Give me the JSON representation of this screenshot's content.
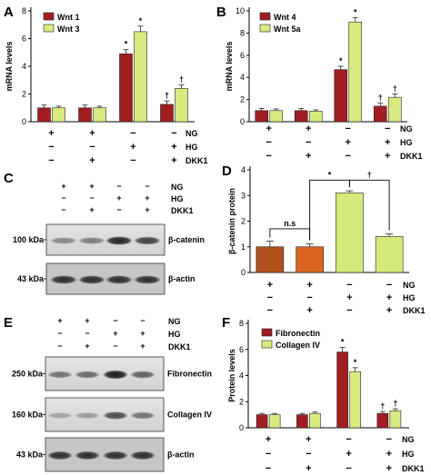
{
  "colors": {
    "red": "#a11d21",
    "lightgreen": "#d9eb80",
    "brown": "#b0501c",
    "orange": "#d9651f",
    "paleGreen": "#d4ea7a"
  },
  "panels": {
    "A": {
      "letter": "A"
    },
    "B": {
      "letter": "B"
    },
    "C": {
      "letter": "C",
      "row_labels": [
        "NG",
        "HG",
        "DKK1"
      ],
      "lanes": [
        [
          "+",
          "+",
          "−",
          "−"
        ],
        [
          "−",
          "−",
          "+",
          "+"
        ],
        [
          "−",
          "+",
          "−",
          "+"
        ]
      ],
      "blots": [
        {
          "kda": "100 kDa",
          "name": "β-catenin"
        },
        {
          "kda": "43 kDa",
          "name": "β-actin"
        }
      ]
    },
    "D": {
      "letter": "D"
    },
    "E": {
      "letter": "E",
      "row_labels": [
        "NG",
        "HG",
        "DKK1"
      ],
      "lanes": [
        [
          "+",
          "+",
          "−",
          "−"
        ],
        [
          "−",
          "−",
          "+",
          "+"
        ],
        [
          "−",
          "+",
          "−",
          "+"
        ]
      ],
      "blots": [
        {
          "kda": "250 kDa",
          "name": "Fibronectin"
        },
        {
          "kda": "160 kDa",
          "name": "Collagen IV"
        },
        {
          "kda": "43 kDa",
          "name": "β-actin"
        }
      ]
    },
    "F": {
      "letter": "F"
    }
  },
  "chart_data": [
    {
      "id": "A",
      "type": "bar",
      "ylabel": "mRNA levels",
      "ylim": [
        0,
        8
      ],
      "yticks": [
        0,
        2,
        4,
        6,
        8
      ],
      "legend": "top-left",
      "series": [
        {
          "name": "Wnt 1",
          "color": "#a11d21",
          "values": [
            1.0,
            1.0,
            4.9,
            1.25
          ],
          "err": [
            0.2,
            0.2,
            0.3,
            0.25
          ]
        },
        {
          "name": "Wnt 3",
          "color": "#d9eb80",
          "values": [
            1.0,
            1.0,
            6.5,
            2.4
          ],
          "err": [
            0.12,
            0.12,
            0.4,
            0.25
          ]
        }
      ],
      "annotations": [
        [
          "",
          ""
        ],
        [
          "",
          ""
        ],
        [
          "*",
          "*"
        ],
        [
          "†",
          "†"
        ]
      ],
      "conditions": {
        "labels": [
          "NG",
          "HG",
          "DKK1"
        ],
        "rows": [
          [
            "+",
            "+",
            "−",
            "−"
          ],
          [
            "−",
            "−",
            "+",
            "+"
          ],
          [
            "−",
            "+",
            "−",
            "+"
          ]
        ]
      }
    },
    {
      "id": "B",
      "type": "bar",
      "ylabel": "mRNA levels",
      "ylim": [
        0,
        10
      ],
      "yticks": [
        0,
        2,
        4,
        6,
        8,
        10
      ],
      "legend": "top-left",
      "series": [
        {
          "name": "Wnt 4",
          "color": "#a11d21",
          "values": [
            1.0,
            1.0,
            4.7,
            1.4
          ],
          "err": [
            0.2,
            0.2,
            0.3,
            0.3
          ]
        },
        {
          "name": "Wnt 5a",
          "color": "#d9eb80",
          "values": [
            1.0,
            0.95,
            9.0,
            2.2
          ],
          "err": [
            0.15,
            0.12,
            0.4,
            0.3
          ]
        }
      ],
      "annotations": [
        [
          "",
          ""
        ],
        [
          "",
          ""
        ],
        [
          "*",
          "*"
        ],
        [
          "†",
          "†"
        ]
      ],
      "conditions": {
        "labels": [
          "NG",
          "HG",
          "DKK1"
        ],
        "rows": [
          [
            "+",
            "+",
            "−",
            "−"
          ],
          [
            "−",
            "−",
            "+",
            "+"
          ],
          [
            "−",
            "+",
            "−",
            "+"
          ]
        ]
      }
    },
    {
      "id": "D",
      "type": "bar",
      "ylabel": "β-catenin protein",
      "ylim": [
        0,
        4
      ],
      "yticks": [
        0,
        1,
        2,
        3,
        4
      ],
      "values": [
        1.0,
        1.0,
        3.1,
        1.4
      ],
      "err": [
        0.22,
        0.12,
        0.08,
        0.1
      ],
      "colors": [
        "#b0501c",
        "#d9651f",
        "#d4ea7a",
        "#d4ea7a"
      ],
      "brackets": [
        {
          "from": 0,
          "to": 1,
          "text": "n.s",
          "y": 1.7
        },
        {
          "from": 1,
          "to": 2,
          "text": "*",
          "y": 3.6
        },
        {
          "from": 2,
          "to": 3,
          "text": "†",
          "y": 3.6
        }
      ],
      "conditions": {
        "labels": [
          "NG",
          "HG",
          "DKK1"
        ],
        "rows": [
          [
            "+",
            "+",
            "−",
            "−"
          ],
          [
            "−",
            "−",
            "+",
            "+"
          ],
          [
            "−",
            "+",
            "−",
            "+"
          ]
        ]
      }
    },
    {
      "id": "F",
      "type": "bar",
      "ylabel": "Protein levels",
      "ylim": [
        0,
        8
      ],
      "yticks": [
        0,
        2,
        4,
        6,
        8
      ],
      "legend": "top-left",
      "series": [
        {
          "name": "Fibronectin",
          "color": "#a11d21",
          "values": [
            1.0,
            1.0,
            5.8,
            1.1
          ],
          "err": [
            0.1,
            0.1,
            0.35,
            0.15
          ]
        },
        {
          "name": "Collagen IV",
          "color": "#d9eb80",
          "values": [
            1.0,
            1.1,
            4.3,
            1.3
          ],
          "err": [
            0.1,
            0.1,
            0.3,
            0.15
          ]
        }
      ],
      "annotations": [
        [
          "",
          ""
        ],
        [
          "",
          ""
        ],
        [
          "*",
          "*"
        ],
        [
          "†",
          "†"
        ]
      ],
      "conditions": {
        "labels": [
          "NG",
          "HG",
          "DKK1"
        ],
        "rows": [
          [
            "+",
            "+",
            "−",
            "−"
          ],
          [
            "−",
            "−",
            "+",
            "+"
          ],
          [
            "−",
            "+",
            "−",
            "+"
          ]
        ]
      }
    }
  ]
}
